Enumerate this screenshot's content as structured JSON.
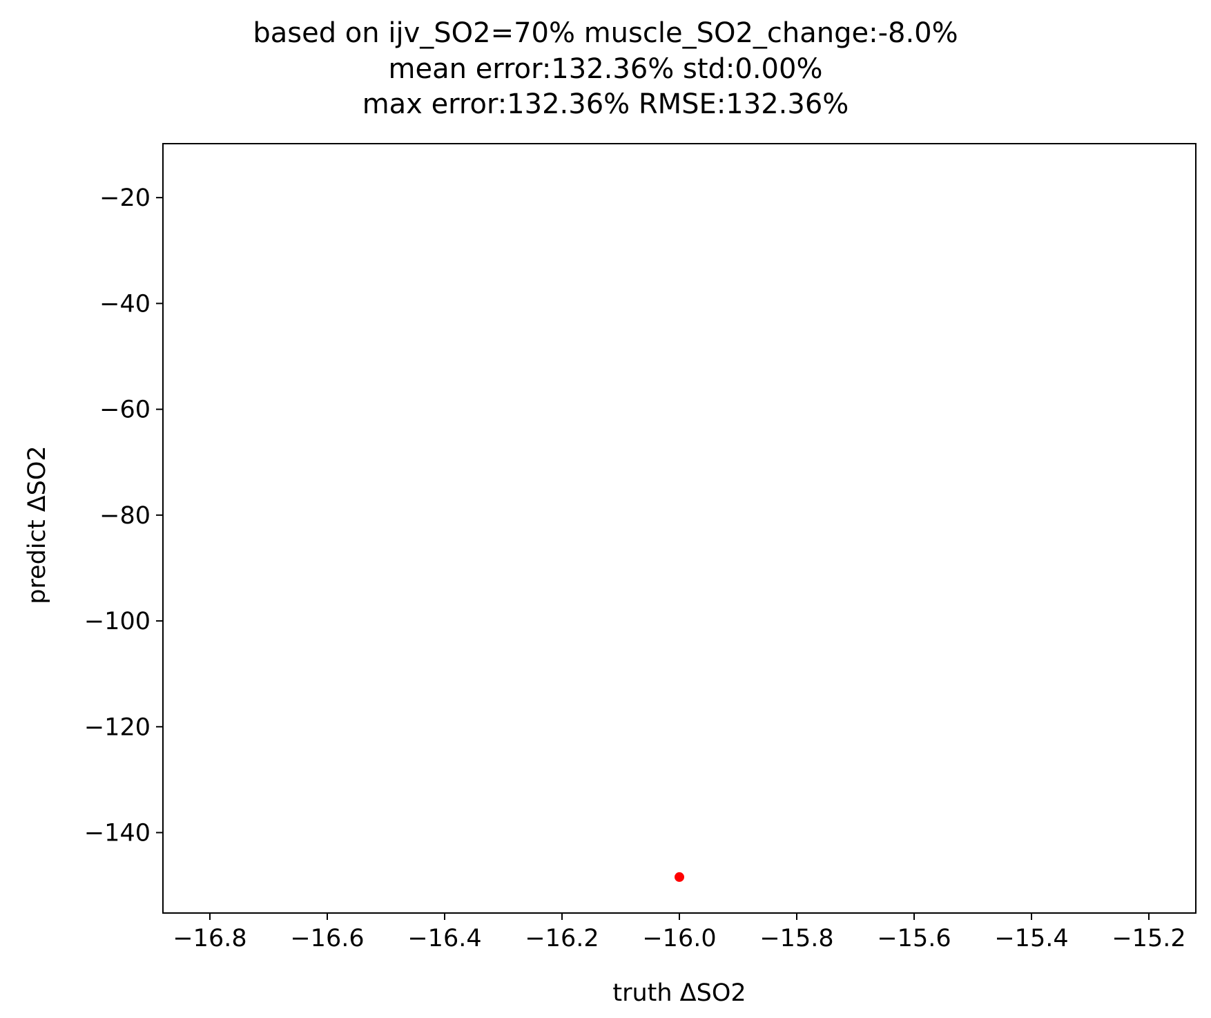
{
  "chart_data": {
    "type": "scatter",
    "title": [
      "based on ijv_SO2=70% muscle_SO2_change:-8.0%",
      "mean error:132.36% std:0.00%",
      "max error:132.36% RMSE:132.36%"
    ],
    "xlabel": "truth ΔSO2",
    "ylabel": "predict ΔSO2",
    "xlim": [
      -16.88,
      -15.12
    ],
    "ylim": [
      -155.2,
      -9.8
    ],
    "x_ticks": [
      -16.8,
      -16.6,
      -16.4,
      -16.2,
      -16.0,
      -15.8,
      -15.6,
      -15.4,
      -15.2
    ],
    "x_tick_labels": [
      "−16.8",
      "−16.6",
      "−16.4",
      "−16.2",
      "−16.0",
      "−15.8",
      "−15.6",
      "−15.4",
      "−15.2"
    ],
    "y_ticks": [
      -20,
      -40,
      -60,
      -80,
      -100,
      -120,
      -140
    ],
    "y_tick_labels": [
      "−20",
      "−40",
      "−60",
      "−80",
      "−100",
      "−120",
      "−140"
    ],
    "grid": false,
    "legend": "none",
    "series": [
      {
        "color": "#ff0000",
        "points": [
          {
            "x": -16.0,
            "y": -148.4
          }
        ]
      }
    ]
  }
}
